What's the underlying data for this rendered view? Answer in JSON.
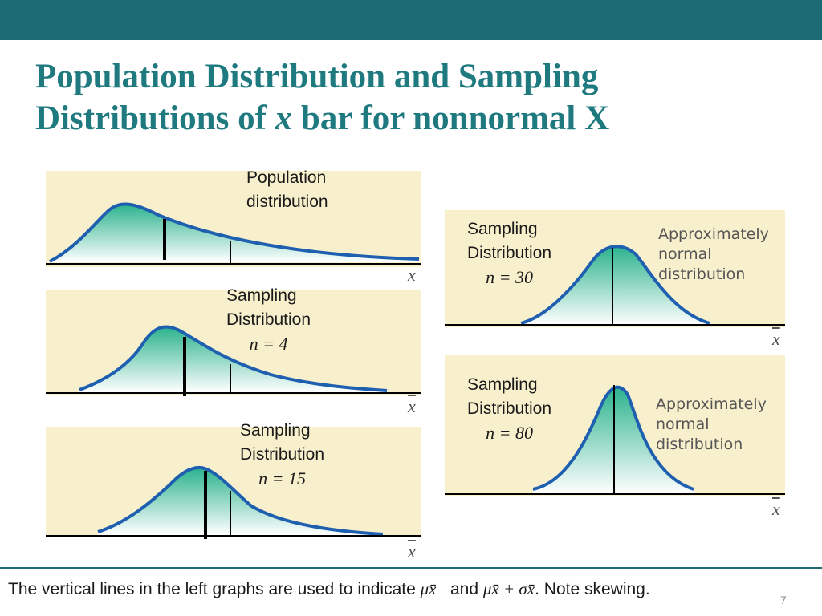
{
  "slide": {
    "title_line1": "Population Distribution and Sampling",
    "title_line2_a": "Distributions of ",
    "title_line2_var": "x",
    "title_line2_b": " bar for nonnormal X",
    "page_number": "7"
  },
  "panels": {
    "population": {
      "label_line1": "Population",
      "label_line2": "distribution",
      "axis": "x"
    },
    "n4": {
      "label_line1": "Sampling",
      "label_line2": "Distribution",
      "n_label": "n = 4",
      "axis": "x̄"
    },
    "n15": {
      "label_line1": "Sampling",
      "label_line2": "Distribution",
      "n_label": "n = 15",
      "axis": "x̄"
    },
    "n30": {
      "label_line1": "Sampling",
      "label_line2": "Distribution",
      "n_label": "n = 30",
      "axis": "x̄",
      "annot_line1": "Approximately",
      "annot_line2": "normal",
      "annot_line3": "distribution"
    },
    "n80": {
      "label_line1": "Sampling",
      "label_line2": "Distribution",
      "n_label": "n = 80",
      "axis": "x̄",
      "annot_line1": "Approximately",
      "annot_line2": "normal",
      "annot_line3": "distribution"
    }
  },
  "caption": {
    "text_a": "The vertical lines in the left graphs are used to indicate ",
    "mu": "μx̄",
    "text_b": "   and ",
    "mu_sigma": "μx̄ + σx̄",
    "text_c": ". Note skewing."
  },
  "colors": {
    "header": "#1b6b74",
    "title": "#1f7a80",
    "panel_bg": "#f8f0cd",
    "curve": "#1f5fb0",
    "fill_top": "#2bb28d",
    "fill_bottom": "#ffffff"
  }
}
